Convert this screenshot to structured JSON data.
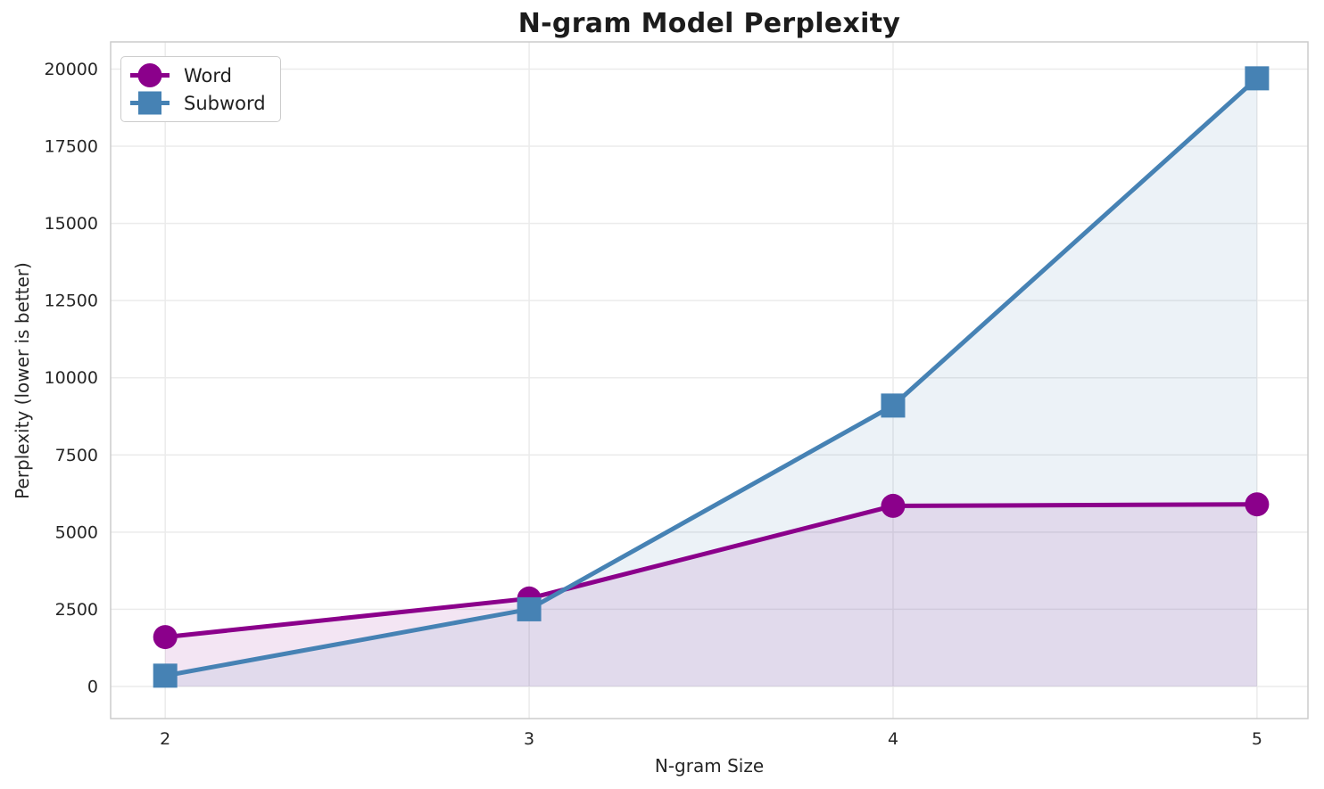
{
  "chart_data": {
    "type": "line",
    "title": "N-gram Model Perplexity",
    "xlabel": "N-gram Size",
    "ylabel": "Perplexity (lower is better)",
    "x": [
      2,
      3,
      4,
      5
    ],
    "series": [
      {
        "name": "Word",
        "marker": "circle",
        "color": "#8B008B",
        "values": [
          1600,
          2850,
          5850,
          5900
        ]
      },
      {
        "name": "Subword",
        "marker": "square",
        "color": "#4682B4",
        "values": [
          350,
          2500,
          9100,
          19700
        ]
      }
    ],
    "xticks": [
      "2",
      "3",
      "4",
      "5"
    ],
    "xtick_positions": [
      2,
      3,
      4,
      5
    ],
    "yticks": [
      "0",
      "2500",
      "5000",
      "7500",
      "10000",
      "12500",
      "15000",
      "17500",
      "20000"
    ],
    "ytick_positions": [
      0,
      2500,
      5000,
      7500,
      10000,
      12500,
      15000,
      17500,
      20000
    ],
    "xlim": [
      1.85,
      5.14
    ],
    "ylim": [
      -1040,
      20880
    ],
    "grid": true,
    "legend_position": "upper-left",
    "fill_to_baseline": 0,
    "fill_alpha": 0.1,
    "line_width": 5,
    "marker_size": 27
  },
  "style": {
    "background": "#FFFFFF",
    "grid_color": "#EBEBEB",
    "spine_color": "#CCCCCC",
    "text_color": "#262626",
    "title_color": "#1C1C1C",
    "tick_font_size": 19
  }
}
